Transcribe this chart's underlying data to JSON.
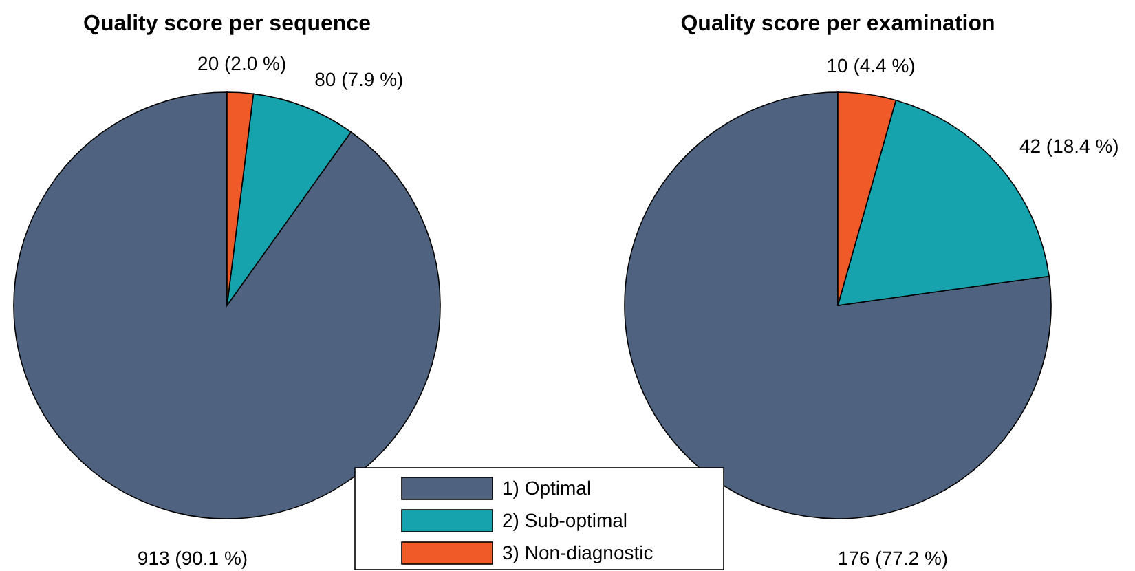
{
  "chart_data": [
    {
      "type": "pie",
      "title": "Quality score per sequence",
      "categories": [
        "1) Optimal",
        "2) Sub-optimal",
        "3) Non-diagnostic"
      ],
      "values": [
        913,
        80,
        20
      ],
      "colors": [
        "#4f6380",
        "#16a3ad",
        "#f05a28"
      ],
      "value_labels": [
        "913 (90.1 %)",
        "80 (7.9 %)",
        "20 (2.0 %)"
      ],
      "legend": "bottom"
    },
    {
      "type": "pie",
      "title": "Quality score per examination",
      "categories": [
        null,
        null,
        null
      ],
      "values": [
        176,
        42,
        10
      ],
      "colors": [
        "#4f6380",
        "#16a3ad",
        "#f05a28"
      ],
      "value_labels": [
        "176 (77.2 %)",
        "42 (18.4 %)",
        "10 (4.4 %)"
      ]
    }
  ]
}
